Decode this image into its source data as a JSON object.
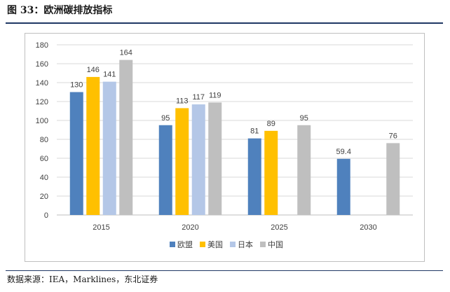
{
  "figure": {
    "title": "图 33：欧洲碳排放指标",
    "source": "数据来源：IEA，Marklines，东北证券"
  },
  "colors": {
    "欧盟": "#4f81bd",
    "美国": "#ffc000",
    "日本": "#b4c7e7",
    "中国": "#bfbfbf",
    "grid": "#d9d9d9",
    "axis": "#bfbfbf",
    "text": "#404040"
  },
  "chart_data": {
    "type": "bar",
    "title": "",
    "xlabel": "",
    "ylabel": "",
    "categories": [
      "2015",
      "2020",
      "2025",
      "2030"
    ],
    "ylim": [
      0,
      180
    ],
    "yticks": [
      0,
      20,
      40,
      60,
      80,
      100,
      120,
      140,
      160,
      180
    ],
    "grid": true,
    "legend": "bottom",
    "series": [
      {
        "name": "欧盟",
        "values": [
          130,
          95,
          81,
          59.4
        ],
        "labels": [
          "130",
          "95",
          "81",
          "59.4"
        ]
      },
      {
        "name": "美国",
        "values": [
          146,
          113,
          89,
          null
        ],
        "labels": [
          "146",
          "113",
          "89",
          ""
        ]
      },
      {
        "name": "日本",
        "values": [
          141,
          117,
          null,
          null
        ],
        "labels": [
          "141",
          "117",
          "",
          ""
        ]
      },
      {
        "name": "中国",
        "values": [
          164,
          119,
          95,
          76
        ],
        "labels": [
          "164",
          "119",
          "95",
          "76"
        ]
      }
    ]
  }
}
